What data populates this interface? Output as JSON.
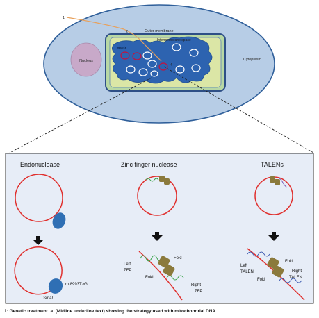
{
  "cell": {
    "pointer_1": "1",
    "pointer_2": "2",
    "pointer_4": "4",
    "outer_membrane": "Outer membrane",
    "intermembrane_space": "Intermembrane space",
    "matrix": "Matrix",
    "nucleus": "Nucleus",
    "cytoplasm": "Cytoplasm"
  },
  "panels": {
    "endonuclease": {
      "title": "Endonuclease",
      "mutation": "m.8993T>G",
      "site": "SmaI"
    },
    "zinc_finger": {
      "title": "Zinc finger nuclease",
      "left_line1": "Left",
      "left_line2": "ZFP",
      "foki_top": "FokI",
      "foki_bottom": "FokI",
      "right_line1": "Right",
      "right_line2": "ZFP"
    },
    "talens": {
      "title": "TALENs",
      "left_line1": "Left",
      "left_line2": "TALEN",
      "foki_top": "FokI",
      "foki_bottom": "FokI",
      "right_line1": "Right",
      "right_line2": "TALEN"
    }
  },
  "caption": "1: Genetic treatment. a. (Midline underline text) showing the strategy used with mitochondrial DNA..."
}
